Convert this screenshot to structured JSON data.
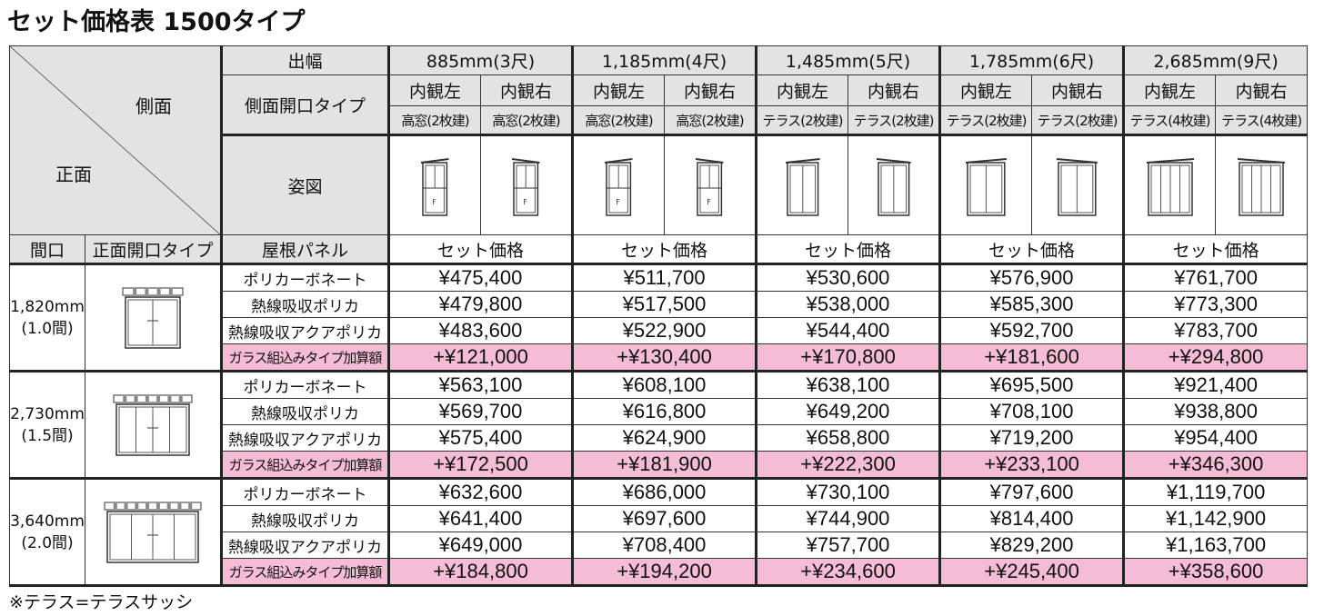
{
  "title": "セット価格表 1500タイプ",
  "note": "※テラス=テラスサッシ",
  "header": {
    "side_label": "側面",
    "front_label": "正面",
    "depth_label": "出幅",
    "side_open_label": "側面開口タイプ",
    "figure_label": "姿図",
    "frontage_label": "間口",
    "front_open_label": "正面開口タイプ",
    "roof_panel_label": "屋根パネル",
    "set_price_label": "セット価格"
  },
  "depths": [
    {
      "label": "885mm(3尺)",
      "sides": [
        {
          "dir": "内観左",
          "type": "高窓(2枚建)"
        },
        {
          "dir": "内観右",
          "type": "高窓(2枚建)"
        }
      ]
    },
    {
      "label": "1,185mm(4尺)",
      "sides": [
        {
          "dir": "内観左",
          "type": "高窓(2枚建)"
        },
        {
          "dir": "内観右",
          "type": "高窓(2枚建)"
        }
      ]
    },
    {
      "label": "1,485mm(5尺)",
      "sides": [
        {
          "dir": "内観左",
          "type": "テラス(2枚建)"
        },
        {
          "dir": "内観右",
          "type": "テラス(2枚建)"
        }
      ]
    },
    {
      "label": "1,785mm(6尺)",
      "sides": [
        {
          "dir": "内観左",
          "type": "テラス(2枚建)"
        },
        {
          "dir": "内観右",
          "type": "テラス(2枚建)"
        }
      ]
    },
    {
      "label": "2,685mm(9尺)",
      "sides": [
        {
          "dir": "内観左",
          "type": "テラス(4枚建)"
        },
        {
          "dir": "内観右",
          "type": "テラス(4枚建)"
        }
      ]
    }
  ],
  "roof_types": [
    "ポリカーボネート",
    "熱線吸収ポリカ",
    "熱線吸収アクアポリカ",
    "ガラス組込みタイプ加算額"
  ],
  "accent_pink": "#f5bcd6",
  "groups": [
    {
      "frontage": "1,820mm",
      "ken": "(1.0間)",
      "prices": [
        [
          "¥475,400",
          "¥511,700",
          "¥530,600",
          "¥576,900",
          "¥761,700"
        ],
        [
          "¥479,800",
          "¥517,500",
          "¥538,000",
          "¥585,300",
          "¥773,300"
        ],
        [
          "¥483,600",
          "¥522,900",
          "¥544,400",
          "¥592,700",
          "¥783,700"
        ],
        [
          "+¥121,000",
          "+¥130,400",
          "+¥170,800",
          "+¥181,600",
          "+¥294,800"
        ]
      ]
    },
    {
      "frontage": "2,730mm",
      "ken": "(1.5間)",
      "prices": [
        [
          "¥563,100",
          "¥608,100",
          "¥638,100",
          "¥695,500",
          "¥921,400"
        ],
        [
          "¥569,700",
          "¥616,800",
          "¥649,200",
          "¥708,100",
          "¥938,800"
        ],
        [
          "¥575,400",
          "¥624,900",
          "¥658,800",
          "¥719,200",
          "¥954,400"
        ],
        [
          "+¥172,500",
          "+¥181,900",
          "+¥222,300",
          "+¥233,100",
          "+¥346,300"
        ]
      ]
    },
    {
      "frontage": "3,640mm",
      "ken": "(2.0間)",
      "prices": [
        [
          "¥632,600",
          "¥686,000",
          "¥730,100",
          "¥797,600",
          "¥1,119,700"
        ],
        [
          "¥641,400",
          "¥697,600",
          "¥744,900",
          "¥814,400",
          "¥1,142,900"
        ],
        [
          "¥649,000",
          "¥708,400",
          "¥757,700",
          "¥829,200",
          "¥1,163,700"
        ],
        [
          "+¥184,800",
          "+¥194,200",
          "+¥234,600",
          "+¥245,400",
          "+¥358,600"
        ]
      ]
    }
  ]
}
